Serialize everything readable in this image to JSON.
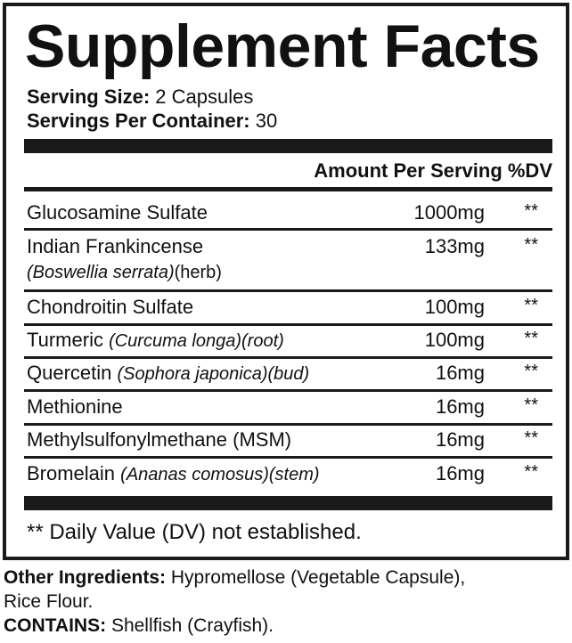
{
  "title": "Supplement Facts",
  "serving_size": {
    "label": "Serving Size:",
    "value": "2 Capsules"
  },
  "servings_per_container": {
    "label": "Servings Per Container:",
    "value": "30"
  },
  "header": "Amount Per Serving %DV",
  "rows": [
    {
      "name": "Glucosamine Sulfate",
      "italic": "",
      "suffix": "",
      "sub_italic": "",
      "sub_suffix": "",
      "amount": "1000mg",
      "dv": "**"
    },
    {
      "name": "Indian Frankincense",
      "italic": "",
      "suffix": "",
      "sub_italic": "(Boswellia serrata)",
      "sub_suffix": "(herb)",
      "amount": "133mg",
      "dv": "**"
    },
    {
      "name": "Chondroitin Sulfate",
      "italic": "",
      "suffix": "",
      "sub_italic": "",
      "sub_suffix": "",
      "amount": "100mg",
      "dv": "**"
    },
    {
      "name": "Turmeric ",
      "italic": "(Curcuma longa)(root)",
      "suffix": "",
      "sub_italic": "",
      "sub_suffix": "",
      "amount": "100mg",
      "dv": "**"
    },
    {
      "name": "Quercetin ",
      "italic": "(Sophora japonica)(bud)",
      "suffix": "",
      "sub_italic": "",
      "sub_suffix": "",
      "amount": "16mg",
      "dv": "**"
    },
    {
      "name": "Methionine",
      "italic": "",
      "suffix": "",
      "sub_italic": "",
      "sub_suffix": "",
      "amount": "16mg",
      "dv": "**"
    },
    {
      "name": "Methylsulfonylmethane (MSM)",
      "italic": "",
      "suffix": "",
      "sub_italic": "",
      "sub_suffix": "",
      "amount": "16mg",
      "dv": "**"
    },
    {
      "name": "Bromelain ",
      "italic": "(Ananas comosus)(stem)",
      "suffix": "",
      "sub_italic": "",
      "sub_suffix": "",
      "amount": "16mg",
      "dv": "**"
    }
  ],
  "footnote": "** Daily Value (DV) not established.",
  "other_ingredients": {
    "label": "Other Ingredients:",
    "value": " Hypromellose (Vegetable Capsule),",
    "value_line2": "Rice Flour."
  },
  "contains": {
    "label": "CONTAINS:",
    "value": " Shellfish (Crayfish)."
  }
}
